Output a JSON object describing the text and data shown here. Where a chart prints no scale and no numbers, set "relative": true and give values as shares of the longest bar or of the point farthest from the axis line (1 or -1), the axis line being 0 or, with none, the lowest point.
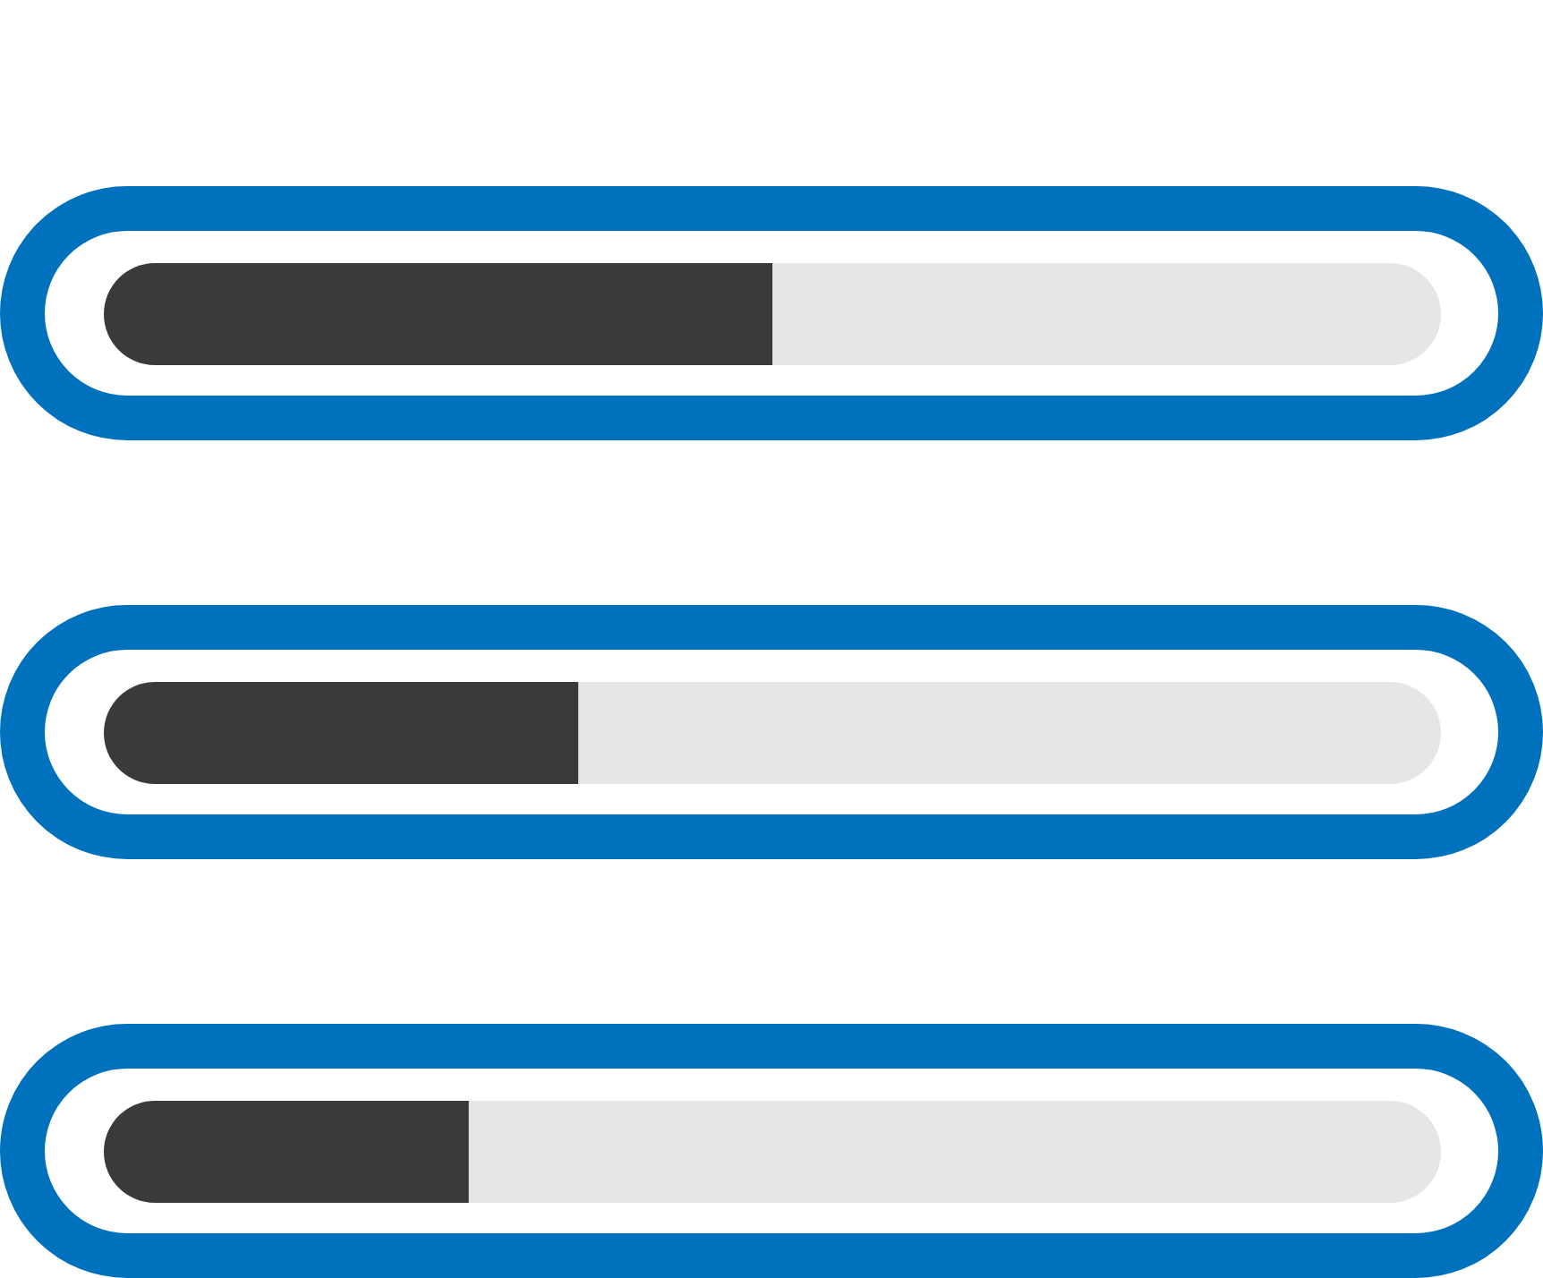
{
  "chart_data": {
    "type": "bar",
    "orientation": "horizontal",
    "stacked": true,
    "relative": true,
    "categories": [
      null,
      null,
      null
    ],
    "series": [
      {
        "color": "#3a3a3a",
        "values": [
          0.5,
          0.355,
          0.273
        ]
      },
      {
        "color": "#e6e6e6",
        "values": [
          0.5,
          0.645,
          0.727
        ]
      }
    ]
  }
}
